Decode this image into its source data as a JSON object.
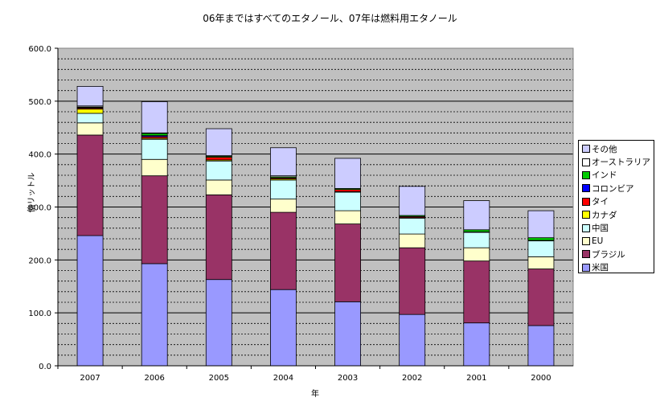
{
  "chart_data": {
    "type": "bar",
    "stacked": true,
    "title": "06年まではすべてのエタノール、07年は燃料用エタノール",
    "xlabel": "年",
    "ylabel": "億リットル",
    "ylim": [
      0,
      600
    ],
    "yticks": [
      "0.0",
      "100.0",
      "200.0",
      "300.0",
      "400.0",
      "500.0",
      "600.0"
    ],
    "grid": true,
    "legend_position": "right",
    "categories": [
      "2007",
      "2006",
      "2005",
      "2004",
      "2003",
      "2002",
      "2001",
      "2000"
    ],
    "series": [
      {
        "name": "米国",
        "color": "#9999ff",
        "values": [
          246,
          193,
          163,
          144,
          121,
          97,
          81,
          76
        ]
      },
      {
        "name": "ブラジル",
        "color": "#993366",
        "values": [
          190,
          166,
          160,
          146,
          147,
          126,
          117,
          107
        ]
      },
      {
        "name": "EU",
        "color": "#ffffcc",
        "values": [
          23,
          31,
          28,
          25,
          25,
          26,
          25,
          23
        ]
      },
      {
        "name": "中国",
        "color": "#ccffff",
        "values": [
          18,
          38,
          36,
          36,
          35,
          30,
          29,
          30
        ]
      },
      {
        "name": "カナダ",
        "color": "#ffff00",
        "values": [
          8,
          2,
          2,
          2,
          1,
          1,
          1,
          1
        ]
      },
      {
        "name": "タイ",
        "color": "#ff0000",
        "values": [
          2,
          3,
          5,
          2,
          4,
          2,
          0,
          0
        ]
      },
      {
        "name": "コロンビア",
        "color": "#0000ff",
        "values": [
          1,
          2,
          0,
          0,
          0,
          0,
          0,
          0
        ]
      },
      {
        "name": "インド",
        "color": "#00cc00",
        "values": [
          1,
          4,
          2,
          2,
          2,
          2,
          4,
          5
        ]
      },
      {
        "name": "オーストラリア",
        "color": "#ffffff",
        "values": [
          2,
          1,
          1,
          2,
          0,
          0,
          0,
          0
        ]
      },
      {
        "name": "その他",
        "color": "#ccccff",
        "values": [
          37,
          59,
          51,
          53,
          57,
          55,
          55,
          51
        ]
      }
    ]
  }
}
